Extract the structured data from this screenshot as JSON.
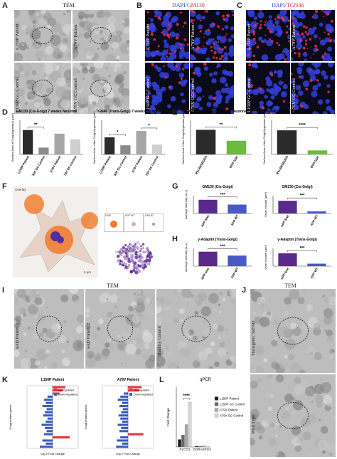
{
  "panel_a": {
    "letter": "A",
    "title": "TEM",
    "labels": [
      "L150P Patient",
      "A79V Patient",
      "L150P GC Control",
      "A79V GC Control"
    ]
  },
  "panel_b": {
    "letter": "B",
    "title": "DAPI/",
    "marker": "GM130",
    "labels": [
      "L150P Patient",
      "A79V Patient",
      "L150P GC Control",
      "A79V GC Control"
    ]
  },
  "panel_c": {
    "letter": "C",
    "title": "DAPI/",
    "marker": "TGN46",
    "labels": [
      "L150P Patient",
      "A79V Patient",
      "L150P GC Control",
      "A79V GC Control"
    ]
  },
  "panel_d": {
    "letter": "D",
    "charts": [
      {
        "type": "bar",
        "title": "GM130 (Cis-Golgi) 7 weeks Neurons",
        "ylabel": "Surface Area of Golgi Apparatus (µm2)",
        "categories": [
          "L150P Patient",
          "L150P GC Control",
          "A79V Patient",
          "A79V GC Control"
        ],
        "values": [
          100,
          28,
          85,
          62
        ],
        "colors": [
          "#2b2b2b",
          "#8a8a8a",
          "#a6a6a6",
          "#cfcfcf"
        ],
        "ylim": [
          0,
          140
        ],
        "significance": [
          "**"
        ]
      },
      {
        "type": "bar",
        "title": "TGN46 (Trans-Golgi) 7 weeks Neurons",
        "ylabel": "Surface Area of the Golgi Apparatus (µm2)",
        "categories": [
          "L150P Patient",
          "L150P GC Control",
          "A79V Patient",
          "A79V GC Control"
        ],
        "values": [
          45,
          24,
          62,
          26
        ],
        "colors": [
          "#2b2b2b",
          "#8a8a8a",
          "#a6a6a6",
          "#cfcfcf"
        ],
        "ylim": [
          0,
          90
        ],
        "significance": [
          "*",
          "*"
        ]
      }
    ]
  },
  "panel_e": {
    "letter": "E",
    "charts": [
      {
        "type": "bar",
        "title": "GM130 (Cis-Golgi) 7 weeks Neurons",
        "ylabel": "Surface Area of the Golgi Apparatus (µm2)",
        "categories": [
          "Rbc3WSEDEN",
          "Wild type"
        ],
        "values": [
          72,
          40
        ],
        "colors": [
          "#2b2b2b",
          "#6dbb3c"
        ],
        "ylim": [
          0,
          100
        ],
        "significance": [
          "**"
        ]
      },
      {
        "type": "bar",
        "title": "TGN46 (Trans-Golgi) 7 weeks Neurons",
        "ylabel": "Surface Area of the Golgi Apparatus (µm2)",
        "categories": [
          "Rbc3WSEDEN",
          "Wild type"
        ],
        "values": [
          60,
          10
        ],
        "colors": [
          "#2b2b2b",
          "#6dbb3c"
        ],
        "ylim": [
          0,
          85
        ],
        "significance": [
          "****"
        ]
      }
    ]
  },
  "panel_f": {
    "letter": "F",
    "labels": [
      "Overlay",
      "DAPI",
      "APP-WT",
      "GM130",
      "Golgi Reconstruction",
      "5 µm"
    ]
  },
  "panel_g": {
    "letter": "G",
    "charts": [
      {
        "type": "bar",
        "title": "GM130 (Cis-Golgi)",
        "ylabel": "Average intensity (a.u.)",
        "categories": [
          "APP-Swe",
          "APP-WT"
        ],
        "values": [
          20,
          13
        ],
        "colors": [
          "#5a2a8a",
          "#4a58c8"
        ],
        "ylim": [
          0,
          26
        ],
        "significance": [
          "***"
        ]
      },
      {
        "type": "bar",
        "title": "GM130 (Cis-Golgi)",
        "ylabel": "Vesel Volume (µm³)",
        "categories": [
          "APP-Swe",
          "APP-WT"
        ],
        "values": [
          30,
          5
        ],
        "colors": [
          "#5a2a8a",
          "#4a58c8"
        ],
        "ylim": [
          0,
          42
        ],
        "significance": [
          "***"
        ]
      }
    ]
  },
  "panel_h": {
    "letter": "H",
    "charts": [
      {
        "type": "bar",
        "title": "γ-Adaptin (Trans-Golgi)",
        "ylabel": "Average intensity (a.u.)",
        "categories": [
          "APP-Swe",
          "APP-WT"
        ],
        "values": [
          26,
          19
        ],
        "colors": [
          "#5a2a8a",
          "#4a58c8"
        ],
        "ylim": [
          0,
          32
        ],
        "significance": [
          "***"
        ]
      },
      {
        "type": "bar",
        "title": "γ-Adaptin (Trans-Golgi)",
        "ylabel": "Vesel Volume (µm³)",
        "categories": [
          "APP-Swe",
          "APP-WT"
        ],
        "values": [
          26,
          5
        ],
        "colors": [
          "#5a2a8a",
          "#4a58c8"
        ],
        "ylim": [
          0,
          36
        ],
        "significance": [
          "***"
        ]
      }
    ]
  },
  "panel_i": {
    "letter": "I",
    "title": "TEM",
    "labels": [
      "sAD Patient 1",
      "sAD Patient 2",
      "Healthy Control"
    ]
  },
  "panel_j": {
    "letter": "J",
    "title": "TEM",
    "labels": [
      "Transgenic 5xFAD",
      "Wild Type"
    ]
  },
  "panel_k": {
    "letter": "K",
    "charts": [
      {
        "type": "hbar",
        "title": "L150P Patient",
        "ylabel": "Golgi-related genes",
        "xlabel": "Log 2 Fold Change",
        "legend": [
          {
            "name": "Up-regulated",
            "color": "#e8333a"
          },
          {
            "name": "Down-regulated",
            "color": "#3a5bbf"
          }
        ],
        "values": [
          1.5,
          1.2,
          0.8,
          -0.6,
          -1.0,
          -0.8,
          -1.2,
          -0.7,
          -0.9,
          -1.1,
          -0.6,
          -0.8,
          -1.3,
          -0.9,
          -0.7,
          -1.0,
          2.0,
          -1.2,
          -0.8,
          -1.5
        ],
        "xlim": [
          -3,
          3
        ]
      },
      {
        "type": "hbar",
        "title": "A79V Patient",
        "ylabel": "Golgi-related genes",
        "xlabel": "Log 2 Fold Change",
        "legend": [
          {
            "name": "Up-regulated",
            "color": "#e8333a"
          },
          {
            "name": "Down-regulated",
            "color": "#3a5bbf"
          }
        ],
        "values": [
          1.6,
          1.3,
          -0.5,
          -0.9,
          -1.2,
          -0.7,
          -1.0,
          -0.6,
          -0.8,
          -1.1,
          -0.9,
          -0.7,
          -1.2,
          -0.8,
          -1.0,
          1.8,
          -0.9,
          -1.3,
          -0.7,
          -1.4
        ],
        "xlim": [
          -3,
          3
        ]
      }
    ]
  },
  "panel_l": {
    "letter": "L",
    "charts": [
      {
        "type": "grouped",
        "title": "qPCR",
        "ylabel": "Fold Change",
        "categories": [
          "FYCO1",
          "GORASP1/2"
        ],
        "series": [
          {
            "name": "L150P Patient",
            "color": "#1e1e1e",
            "values": [
              1.0,
              0.1
            ]
          },
          {
            "name": "L150P GC Control",
            "color": "#6b6b6b",
            "values": [
              1.6,
              0.1
            ]
          },
          {
            "name": "A79V Patient",
            "color": "#a8a8a8",
            "values": [
              3.0,
              0.15
            ]
          },
          {
            "name": "A79V GC Control",
            "color": "#d6d6d6",
            "values": [
              6.0,
              0.1
            ]
          }
        ],
        "ylim": [
          0,
          8
        ],
        "significance": [
          "****"
        ]
      }
    ]
  }
}
